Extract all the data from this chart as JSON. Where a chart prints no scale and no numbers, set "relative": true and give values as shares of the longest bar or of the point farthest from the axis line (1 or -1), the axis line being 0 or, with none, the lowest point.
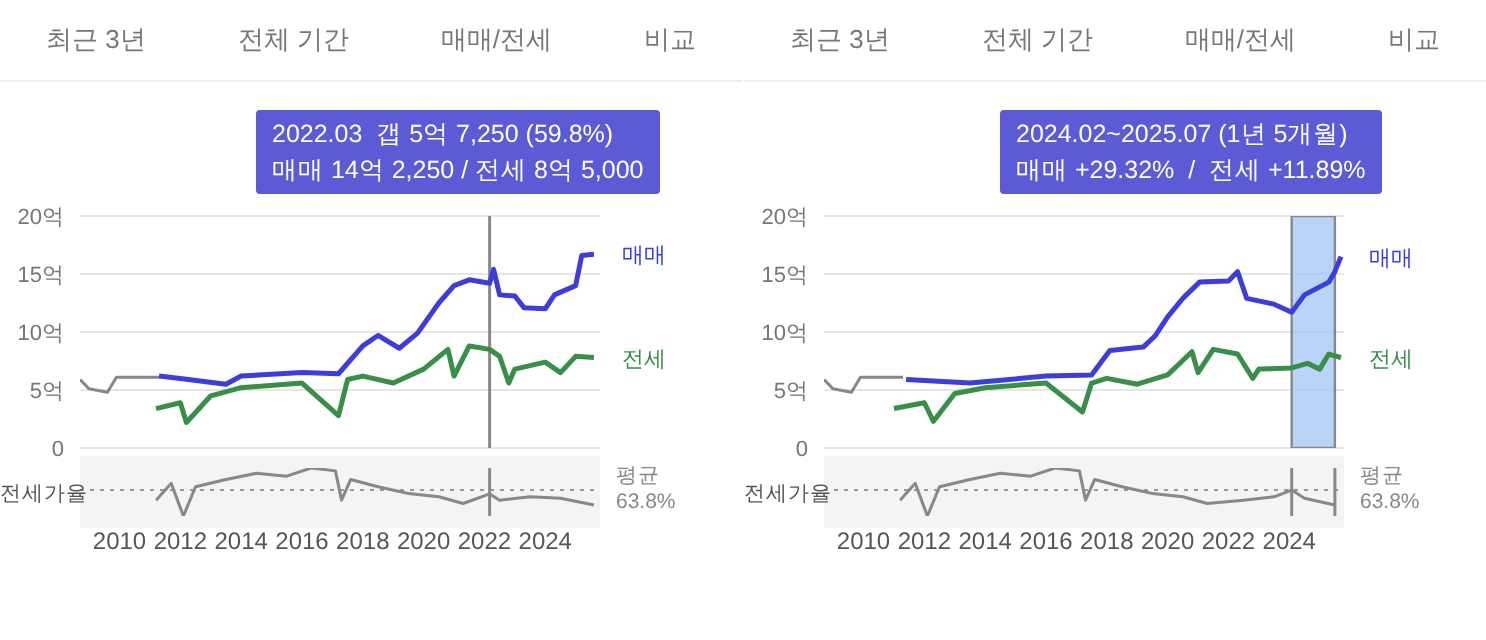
{
  "chart_data": [
    {
      "type": "other",
      "annotations": [
        "최근 3년",
        "전체 기간",
        "매매/전세",
        "비교"
      ]
    },
    {
      "type": "line",
      "xlim": [
        2008.7,
        2025.8
      ],
      "ylim": [
        0,
        20
      ],
      "yticks": [
        0,
        {
          "value": 5,
          "label": "5억"
        },
        {
          "value": 10,
          "label": "10억"
        },
        {
          "value": 15,
          "label": "15억"
        },
        {
          "value": 20,
          "label": "20억"
        }
      ],
      "tick_labels": "y",
      "grid": "y",
      "annotations": [
        "2022.03  갭 5억 7,250 (59.8%)",
        "매매 14억 2,250 / 전세 8억 5,000"
      ],
      "ref_lines": [
        {
          "axis": "x",
          "value": 2022.17,
          "color": "#888888"
        }
      ],
      "series": [
        {
          "color": "#888888",
          "x": [
            2008.7,
            2009.0,
            2009.6,
            2009.9,
            2011.3
          ],
          "values": [
            5.9,
            5.1,
            4.8,
            6.1,
            6.1
          ]
        },
        {
          "name": "매매",
          "color": "#3d3ddb",
          "x": [
            2011.3,
            2012.0,
            2013.5,
            2014.0,
            2016.0,
            2017.2,
            2018.0,
            2018.5,
            2019.2,
            2019.8,
            2020.5,
            2021.0,
            2021.5,
            2022.17,
            2022.3,
            2022.5,
            2023.0,
            2023.3,
            2024.0,
            2024.3,
            2025.0,
            2025.2,
            2025.6
          ],
          "values": [
            6.2,
            6.0,
            5.5,
            6.2,
            6.5,
            6.4,
            8.8,
            9.7,
            8.6,
            9.9,
            12.5,
            14.0,
            14.5,
            14.2,
            15.4,
            13.2,
            13.1,
            12.1,
            12.0,
            13.2,
            14.0,
            16.6,
            16.7
          ]
        },
        {
          "name": "전세",
          "color": "#3a8f48",
          "x": [
            2011.2,
            2012.0,
            2012.2,
            2013.0,
            2014.0,
            2016.0,
            2017.2,
            2017.5,
            2018.0,
            2019.0,
            2020.0,
            2020.8,
            2021.0,
            2021.5,
            2022.17,
            2022.5,
            2022.8,
            2023.0,
            2024.0,
            2024.5,
            2025.0,
            2025.6
          ],
          "values": [
            3.4,
            3.9,
            2.2,
            4.5,
            5.2,
            5.6,
            2.8,
            5.9,
            6.2,
            5.6,
            6.8,
            8.5,
            6.2,
            8.8,
            8.5,
            7.9,
            5.6,
            6.8,
            7.4,
            6.5,
            7.9,
            7.8
          ]
        }
      ]
    },
    {
      "type": "line",
      "ylabel": "전세가율",
      "relative": true,
      "xlim": [
        2008.7,
        2025.8
      ],
      "xticks": [
        2010,
        2012,
        2014,
        2016,
        2018,
        2020,
        2022,
        2024
      ],
      "tick_labels": "x",
      "ref_lines": [
        {
          "axis": "y",
          "value": 0.54,
          "label": "평균 63.8%",
          "line_style": "dotted",
          "color": "#999999"
        },
        {
          "axis": "x",
          "value": 2022.17,
          "color": "#888888"
        }
      ],
      "series": [
        {
          "color": "#888888",
          "x": [
            2011.2,
            2011.7,
            2012.1,
            2012.5,
            2013.5,
            2014.5,
            2015.5,
            2016.3,
            2017.1,
            2017.3,
            2017.6,
            2018.5,
            2019.5,
            2020.5,
            2021.3,
            2022.17,
            2022.5,
            2023.5,
            2024.5,
            2025.6
          ],
          "values": [
            0.33,
            0.68,
            0,
            0.61,
            0.76,
            0.89,
            0.83,
            1,
            0.94,
            0.33,
            0.76,
            0.61,
            0.47,
            0.4,
            0.26,
            0.46,
            0.33,
            0.4,
            0.37,
            0.23
          ]
        }
      ]
    },
    {
      "type": "other",
      "annotations": [
        "최근 3년",
        "전체 기간",
        "매매/전세",
        "비교"
      ]
    },
    {
      "type": "line",
      "xlim": [
        2008.7,
        2025.8
      ],
      "ylim": [
        0,
        20
      ],
      "yticks": [
        0,
        {
          "value": 5,
          "label": "5억"
        },
        {
          "value": 10,
          "label": "10억"
        },
        {
          "value": 15,
          "label": "15억"
        },
        {
          "value": 20,
          "label": "20억"
        }
      ],
      "tick_labels": "y",
      "grid": "y",
      "annotations": [
        "2024.02~2025.07 (1년 5개월)",
        "매매 +29.32%  /  전세 +11.89%"
      ],
      "bands": [
        {
          "axis": "x",
          "from": 2024.08,
          "to": 2025.5,
          "color": "#a9c9f7"
        }
      ],
      "series": [
        {
          "color": "#888888",
          "x": [
            2008.7,
            2009.0,
            2009.6,
            2009.9,
            2011.3
          ],
          "values": [
            5.9,
            5.1,
            4.8,
            6.1,
            6.1
          ]
        },
        {
          "name": "매매",
          "color": "#3d3ddb",
          "x": [
            2011.4,
            2013.5,
            2016.0,
            2017.5,
            2018.1,
            2019.2,
            2019.6,
            2020.0,
            2020.5,
            2021.05,
            2022.0,
            2022.3,
            2022.6,
            2023.5,
            2024.08,
            2024.5,
            2025.3,
            2025.5,
            2025.7
          ],
          "values": [
            5.9,
            5.6,
            6.2,
            6.3,
            8.4,
            8.7,
            9.7,
            11.3,
            12.9,
            14.3,
            14.4,
            15.2,
            12.9,
            12.4,
            11.7,
            13.2,
            14.3,
            15.2,
            16.5
          ]
        },
        {
          "name": "전세",
          "color": "#3a8f48",
          "x": [
            2011.0,
            2012.0,
            2012.3,
            2013.0,
            2014.0,
            2016.0,
            2017.2,
            2017.5,
            2018.0,
            2019.0,
            2020.0,
            2020.8,
            2021.0,
            2021.5,
            2022.3,
            2022.8,
            2023.0,
            2024.08,
            2024.6,
            2025.0,
            2025.3,
            2025.7
          ],
          "values": [
            3.4,
            3.9,
            2.3,
            4.7,
            5.2,
            5.6,
            3.1,
            5.6,
            6.0,
            5.5,
            6.3,
            8.3,
            6.5,
            8.5,
            8.1,
            6.0,
            6.8,
            6.9,
            7.3,
            6.8,
            8.1,
            7.8
          ]
        }
      ]
    },
    {
      "type": "line",
      "ylabel": "전세가율",
      "relative": true,
      "xlim": [
        2008.7,
        2025.8
      ],
      "xticks": [
        2010,
        2012,
        2014,
        2016,
        2018,
        2020,
        2022,
        2024
      ],
      "tick_labels": "x",
      "ref_lines": [
        {
          "axis": "y",
          "value": 0.54,
          "label": "평균 63.8%",
          "line_style": "dotted",
          "color": "#999999"
        },
        {
          "axis": "x",
          "value": 2024.08,
          "color": "#888888"
        },
        {
          "axis": "x",
          "value": 2025.5,
          "color": "#888888"
        }
      ],
      "series": [
        {
          "color": "#888888",
          "x": [
            2011.2,
            2011.7,
            2012.1,
            2012.5,
            2013.5,
            2014.5,
            2015.5,
            2016.3,
            2017.1,
            2017.3,
            2017.6,
            2018.5,
            2019.5,
            2020.5,
            2021.3,
            2022.5,
            2023.5,
            2024.08,
            2024.5,
            2025.5
          ],
          "values": [
            0.33,
            0.68,
            0,
            0.61,
            0.76,
            0.89,
            0.83,
            1,
            0.94,
            0.33,
            0.76,
            0.61,
            0.47,
            0.4,
            0.26,
            0.33,
            0.4,
            0.54,
            0.37,
            0.23
          ]
        }
      ]
    }
  ]
}
